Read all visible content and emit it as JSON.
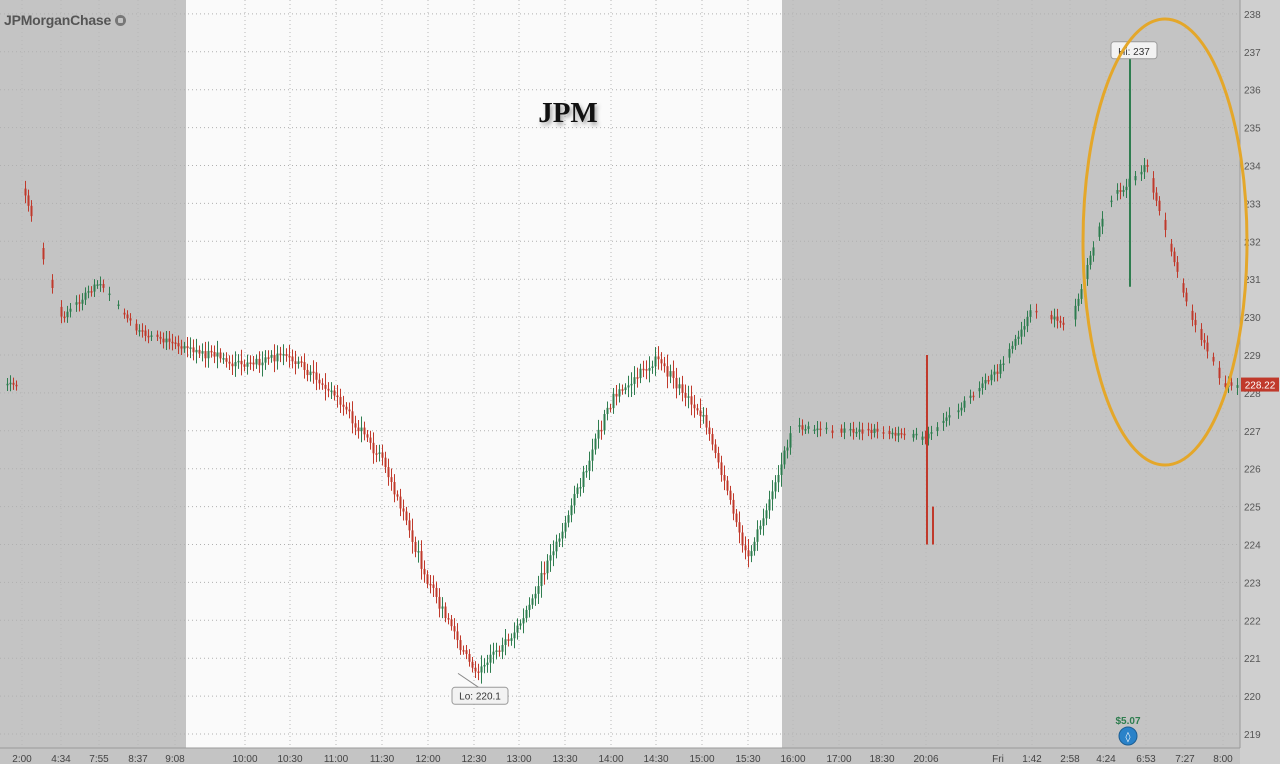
{
  "brand": {
    "name": "JPMorganChase"
  },
  "chart_data": {
    "type": "line",
    "title": "JPM",
    "xlabel": "",
    "ylabel": "",
    "ylim": [
      218.7,
      238.3
    ],
    "yticks": [
      219,
      220,
      221,
      222,
      223,
      224,
      225,
      226,
      227,
      228,
      229,
      230,
      231,
      232,
      233,
      234,
      235,
      236,
      237,
      238
    ],
    "xticks": [
      "2:00",
      "4:34",
      "7:55",
      "8:37",
      "9:08",
      "10:00",
      "10:30",
      "11:00",
      "11:30",
      "12:00",
      "12:30",
      "13:00",
      "13:30",
      "14:00",
      "14:30",
      "15:00",
      "15:30",
      "16:00",
      "17:00",
      "18:30",
      "20:06",
      "Fri",
      "1:42",
      "2:58",
      "4:24",
      "6:53",
      "7:27",
      "8:00"
    ],
    "sessions": [
      {
        "name": "pre-market",
        "shaded": true
      },
      {
        "name": "regular",
        "shaded": false
      },
      {
        "name": "after-hours",
        "shaded": true
      }
    ],
    "series": [
      {
        "x": [
          "2:00",
          "4:34",
          "7:55",
          "8:37",
          "9:08",
          "10:00",
          "10:30",
          "11:00",
          "11:30",
          "12:00",
          "12:30",
          "13:00",
          "13:30",
          "14:00",
          "14:30",
          "15:00",
          "15:30",
          "16:00",
          "17:00",
          "18:30",
          "20:06",
          "Fri",
          "1:42",
          "2:58",
          "4:24",
          "6:53",
          "7:27",
          "8:00"
        ],
        "values": [
          233.4,
          230.0,
          230.9,
          229.6,
          229.3,
          228.7,
          229.0,
          227.9,
          226.2,
          223.0,
          220.6,
          221.8,
          224.6,
          227.8,
          228.9,
          227.4,
          223.6,
          227.1,
          227.0,
          227.0,
          226.8,
          228.6,
          230.2,
          229.8,
          233.0,
          234.0,
          230.4,
          228.2
        ]
      }
    ],
    "annotations": [
      {
        "label": "Hi: 237",
        "x": "4:24",
        "y": 237
      },
      {
        "label": "Lo: 220.1",
        "x": "12:30",
        "y": 220.1
      },
      {
        "label": "$5.07",
        "x": "4:24"
      }
    ],
    "last_price": "228.22",
    "colors": {
      "up": "#2e7d4f",
      "down": "#c0392b",
      "shade": "#c4c4c4",
      "regular_bg": "#fafafa",
      "highlight": "#e4a72a",
      "last_price_tag": "#c0392b"
    }
  }
}
